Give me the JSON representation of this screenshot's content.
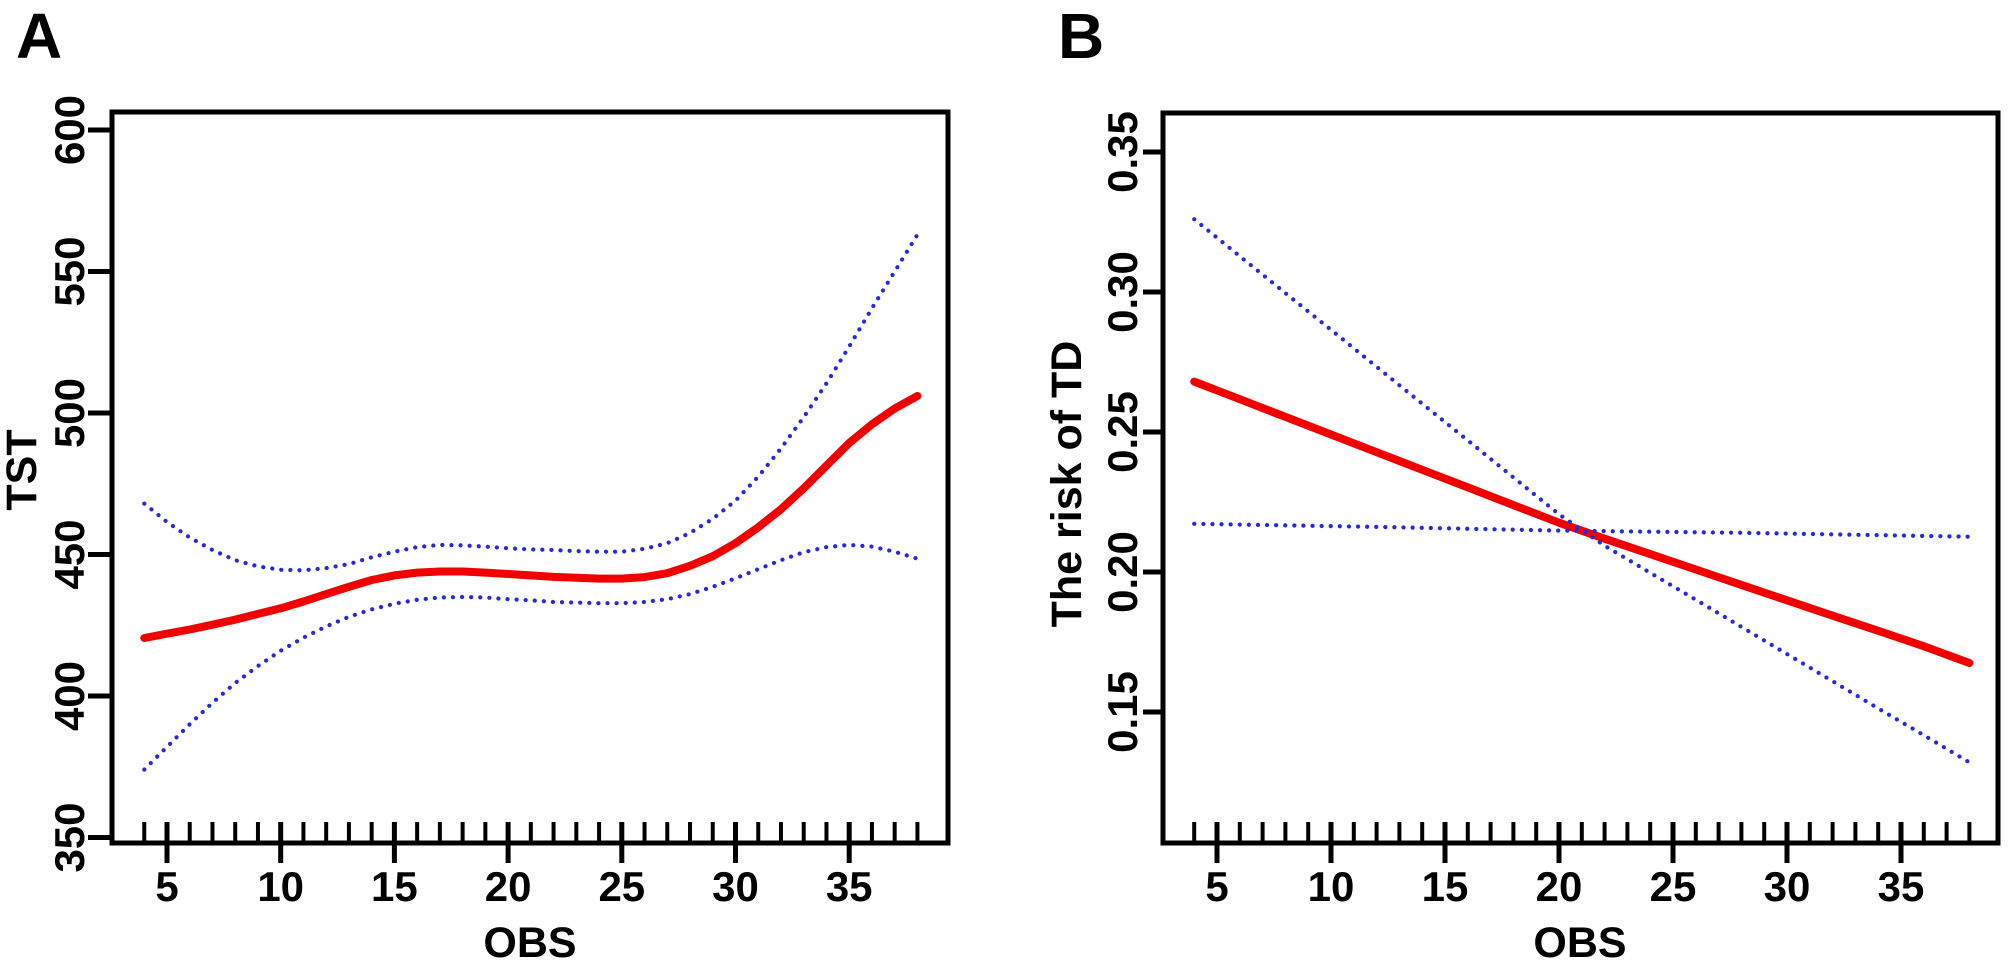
{
  "figure": {
    "background": "#ffffff",
    "axis_color": "#000000",
    "fit_color": "#f20000",
    "ci_color": "#2828dc"
  },
  "chart_data": [
    {
      "type": "line",
      "panel_label": "A",
      "xlabel": "OBS",
      "ylabel": "TST",
      "xlim": [
        2.6,
        39.3
      ],
      "ylim": [
        348,
        606
      ],
      "grid": false,
      "legend": "none",
      "x_minor_tick_from": 4,
      "x_minor_tick_to": 38,
      "x_minor_tick_step": 1,
      "x_major_ticks": [
        {
          "value": 5,
          "label": "5"
        },
        {
          "value": 10,
          "label": "10"
        },
        {
          "value": 15,
          "label": "15"
        },
        {
          "value": 20,
          "label": "20"
        },
        {
          "value": 25,
          "label": "25"
        },
        {
          "value": 30,
          "label": "30"
        },
        {
          "value": 35,
          "label": "35"
        }
      ],
      "y_ticks": [
        {
          "value": 350,
          "label": "350"
        },
        {
          "value": 400,
          "label": "400"
        },
        {
          "value": 450,
          "label": "450"
        },
        {
          "value": 500,
          "label": "500"
        },
        {
          "value": 550,
          "label": "550"
        },
        {
          "value": 600,
          "label": "600"
        }
      ],
      "series": [
        {
          "name": "fitted-curve",
          "style": "solid",
          "color": "#f20000",
          "x": [
            4,
            5,
            6,
            7,
            8,
            9,
            10,
            11,
            12,
            13,
            14,
            15,
            16,
            17,
            18,
            19,
            20,
            21,
            22,
            23,
            24,
            25,
            26,
            27,
            28,
            29,
            30,
            31,
            32,
            33,
            34,
            35,
            36,
            37,
            38
          ],
          "y": [
            420.5,
            422,
            423.5,
            425.2,
            427,
            429,
            431,
            433.4,
            436,
            438.6,
            441,
            442.6,
            443.6,
            444,
            444,
            443.6,
            443.1,
            442.6,
            442.1,
            441.8,
            441.5,
            441.5,
            442,
            443.4,
            446,
            449.4,
            454,
            459.6,
            466,
            473.4,
            481.4,
            489.4,
            496,
            501.6,
            506
          ]
        },
        {
          "name": "upper-ci",
          "style": "dotted",
          "color": "#2828dc",
          "x": [
            4,
            5,
            6,
            7,
            8,
            9,
            10,
            11,
            12,
            13,
            14,
            15,
            16,
            17,
            18,
            19,
            20,
            21,
            22,
            23,
            24,
            25,
            26,
            27,
            28,
            29,
            30,
            31,
            32,
            33,
            34,
            35,
            36,
            37,
            38
          ],
          "y": [
            468,
            461.5,
            456,
            451.6,
            448,
            445.8,
            444.6,
            444.4,
            445.2,
            446.6,
            449,
            451,
            452.6,
            453.4,
            453.2,
            452.8,
            452.2,
            451.8,
            451.6,
            451.2,
            451,
            451,
            452,
            454,
            457.6,
            462.6,
            469,
            477.5,
            487.5,
            498.5,
            510.5,
            523.5,
            537,
            550,
            563
          ]
        },
        {
          "name": "lower-ci",
          "style": "dotted",
          "color": "#2828dc",
          "x": [
            4,
            5,
            6,
            7,
            8,
            9,
            10,
            11,
            12,
            13,
            14,
            15,
            16,
            17,
            18,
            19,
            20,
            21,
            22,
            23,
            24,
            25,
            26,
            27,
            28,
            29,
            30,
            31,
            32,
            33,
            34,
            35,
            36,
            37,
            38
          ],
          "y": [
            374,
            382,
            390,
            397.6,
            404.6,
            410.6,
            416,
            420.6,
            424.6,
            428,
            430.6,
            432.6,
            434,
            434.8,
            435,
            434.8,
            434.2,
            433.8,
            433.2,
            433,
            432.8,
            432.8,
            433.2,
            434.2,
            436,
            438.6,
            441.6,
            444.8,
            448,
            450.8,
            452.6,
            453.4,
            452.8,
            451,
            448.5
          ]
        }
      ]
    },
    {
      "type": "line",
      "panel_label": "B",
      "xlabel": "OBS",
      "ylabel": "The risk of TD",
      "xlim": [
        2.6,
        39.2
      ],
      "ylim": [
        0.103,
        0.364
      ],
      "grid": false,
      "legend": "none",
      "x_minor_tick_from": 4,
      "x_minor_tick_to": 38,
      "x_minor_tick_step": 1,
      "x_major_ticks": [
        {
          "value": 5,
          "label": "5"
        },
        {
          "value": 10,
          "label": "10"
        },
        {
          "value": 15,
          "label": "15"
        },
        {
          "value": 20,
          "label": "20"
        },
        {
          "value": 25,
          "label": "25"
        },
        {
          "value": 30,
          "label": "30"
        },
        {
          "value": 35,
          "label": "35"
        }
      ],
      "y_ticks": [
        {
          "value": 0.15,
          "label": "0.15"
        },
        {
          "value": 0.2,
          "label": "0.20"
        },
        {
          "value": 0.25,
          "label": "0.25"
        },
        {
          "value": 0.3,
          "label": "0.30"
        },
        {
          "value": 0.35,
          "label": "0.35"
        }
      ],
      "series": [
        {
          "name": "fitted-curve",
          "style": "solid",
          "color": "#f20000",
          "x": [
            4,
            6,
            8,
            10,
            12,
            14,
            16,
            18,
            20,
            22,
            24,
            26,
            28,
            30,
            32,
            34,
            36,
            38
          ],
          "y": [
            0.268,
            0.2617,
            0.2554,
            0.2491,
            0.2428,
            0.2365,
            0.2302,
            0.2239,
            0.2176,
            0.2119,
            0.2064,
            0.2009,
            0.1954,
            0.1899,
            0.1844,
            0.179,
            0.1735,
            0.1675
          ]
        },
        {
          "name": "upper-ci",
          "style": "dotted",
          "color": "#2828dc",
          "x": [
            4,
            6,
            8,
            10,
            12,
            14,
            16,
            18,
            20,
            22,
            24,
            26,
            28,
            30,
            32,
            34,
            36,
            38
          ],
          "y": [
            0.326,
            0.3128,
            0.2996,
            0.2865,
            0.2733,
            0.2601,
            0.247,
            0.2338,
            0.2206,
            0.2094,
            0.1997,
            0.1901,
            0.1804,
            0.1707,
            0.161,
            0.1513,
            0.1417,
            0.132
          ]
        },
        {
          "name": "lower-ci",
          "style": "dotted",
          "color": "#2828dc",
          "x": [
            4,
            12,
            20,
            28,
            38
          ],
          "y": [
            0.2172,
            0.2161,
            0.2148,
            0.214,
            0.2126
          ]
        }
      ]
    }
  ]
}
